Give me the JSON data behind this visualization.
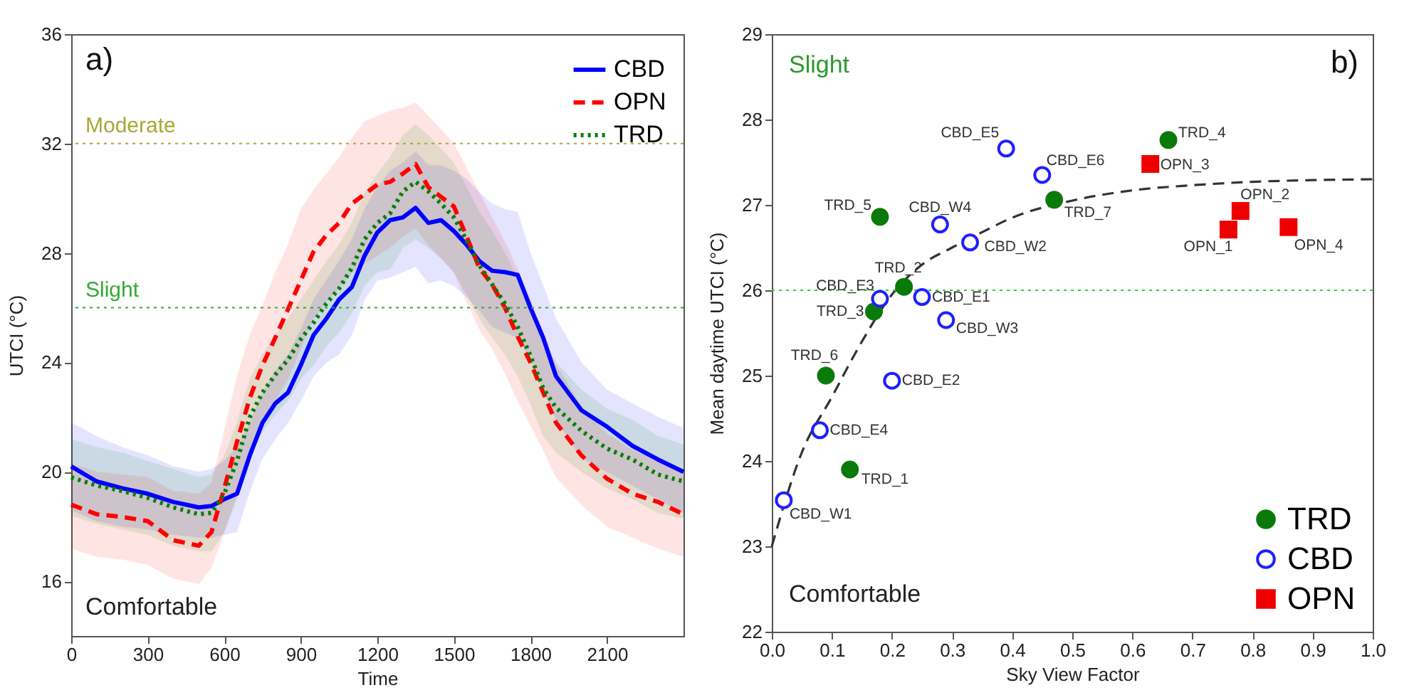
{
  "chart_data": [
    {
      "type": "line",
      "xlabel": "Time",
      "ylabel": "UTCI (°C)",
      "xlim": [
        0,
        2400
      ],
      "xticks": [
        0,
        300,
        600,
        900,
        1200,
        1500,
        1800,
        2100
      ],
      "ylim": [
        14,
        36
      ],
      "yticks": [
        16,
        20,
        24,
        28,
        32,
        36
      ],
      "grid": false,
      "legend": "top right",
      "marker": "none",
      "x": [
        0,
        100,
        200,
        300,
        400,
        500,
        550,
        600,
        650,
        700,
        750,
        800,
        850,
        900,
        950,
        1000,
        1050,
        1100,
        1150,
        1200,
        1250,
        1300,
        1350,
        1400,
        1450,
        1500,
        1550,
        1600,
        1650,
        1700,
        1750,
        1800,
        1850,
        1900,
        2000,
        2100,
        2200,
        2300,
        2400
      ],
      "series": [
        {
          "name": "CBD",
          "color": "#0000ff",
          "line_style": "solid",
          "values": [
            20.2,
            19.65,
            19.4,
            19.2,
            18.9,
            18.7,
            18.75,
            19.0,
            19.2,
            20.6,
            21.8,
            22.5,
            22.9,
            23.9,
            25.0,
            25.6,
            26.3,
            26.75,
            27.9,
            28.75,
            29.2,
            29.3,
            29.65,
            29.1,
            29.2,
            28.8,
            28.3,
            27.7,
            27.35,
            27.3,
            27.2,
            26.0,
            24.9,
            23.5,
            22.25,
            21.65,
            20.95,
            20.45,
            20.0
          ],
          "upper": [
            21.8,
            21.3,
            20.9,
            20.6,
            20.2,
            20.0,
            20.1,
            20.4,
            20.9,
            21.8,
            22.9,
            23.7,
            24.3,
            25.2,
            26.3,
            27.0,
            27.7,
            28.5,
            29.6,
            30.4,
            31.0,
            31.3,
            31.7,
            31.2,
            31.2,
            31.0,
            30.7,
            30.2,
            29.8,
            29.6,
            29.5,
            28.0,
            26.8,
            25.6,
            24.0,
            23.0,
            22.5,
            22.0,
            21.6
          ],
          "lower": [
            18.6,
            18.2,
            18.0,
            17.9,
            17.7,
            17.6,
            17.6,
            17.7,
            17.8,
            19.3,
            20.5,
            21.2,
            21.8,
            22.6,
            23.5,
            24.0,
            24.3,
            25.0,
            26.3,
            27.0,
            27.1,
            27.3,
            27.5,
            26.9,
            27.0,
            26.8,
            26.4,
            25.9,
            25.3,
            25.1,
            24.9,
            24.1,
            23.0,
            21.9,
            20.5,
            20.0,
            19.5,
            19.0,
            18.5
          ]
        },
        {
          "name": "OPN",
          "color": "#ff0000",
          "line_style": "dashed",
          "values": [
            18.8,
            18.45,
            18.35,
            18.2,
            17.5,
            17.3,
            17.8,
            19.4,
            21.1,
            22.7,
            23.9,
            24.9,
            25.95,
            27.0,
            28.05,
            28.65,
            29.1,
            29.8,
            30.15,
            30.5,
            30.6,
            30.9,
            31.25,
            30.4,
            30.05,
            29.7,
            28.6,
            27.45,
            26.85,
            26.0,
            24.95,
            24.0,
            22.9,
            21.8,
            20.6,
            19.75,
            19.2,
            18.9,
            18.45
          ],
          "upper": [
            20.3,
            20.0,
            19.9,
            19.8,
            19.3,
            19.2,
            19.6,
            21.5,
            23.5,
            25.0,
            26.1,
            27.3,
            28.3,
            29.6,
            30.3,
            30.9,
            31.5,
            32.2,
            32.8,
            33.0,
            33.2,
            33.3,
            33.5,
            33.0,
            32.5,
            32.0,
            31.1,
            30.2,
            29.3,
            28.4,
            27.4,
            26.3,
            25.1,
            23.9,
            22.4,
            21.4,
            20.8,
            20.4,
            19.9
          ],
          "lower": [
            17.2,
            16.9,
            16.8,
            16.6,
            16.1,
            15.9,
            16.5,
            17.8,
            19.2,
            20.6,
            21.7,
            22.6,
            23.4,
            24.5,
            25.6,
            26.2,
            26.7,
            27.3,
            27.6,
            27.9,
            28.2,
            28.6,
            28.9,
            28.3,
            27.8,
            27.3,
            26.2,
            25.2,
            24.5,
            23.6,
            22.6,
            21.7,
            20.8,
            19.8,
            18.8,
            18.0,
            17.6,
            17.2,
            16.9
          ]
        },
        {
          "name": "TRD",
          "color": "#008000",
          "line_style": "dotted",
          "values": [
            19.8,
            19.5,
            19.3,
            19.05,
            18.7,
            18.45,
            18.5,
            19.2,
            20.4,
            22.0,
            22.9,
            23.55,
            24.1,
            24.85,
            25.45,
            26.15,
            26.7,
            27.45,
            28.5,
            29.1,
            29.45,
            30.25,
            30.6,
            30.25,
            29.8,
            29.3,
            28.45,
            27.55,
            26.85,
            26.15,
            25.3,
            24.25,
            23.05,
            22.35,
            21.5,
            20.85,
            20.45,
            19.9,
            19.65
          ],
          "upper": [
            21.2,
            20.9,
            20.7,
            20.4,
            20.1,
            19.8,
            19.9,
            20.6,
            21.8,
            23.4,
            24.3,
            25.0,
            25.6,
            26.3,
            27.0,
            27.7,
            28.3,
            29.1,
            30.2,
            30.9,
            31.5,
            32.3,
            32.7,
            32.3,
            31.8,
            31.3,
            30.4,
            29.5,
            28.8,
            28.0,
            27.1,
            26.0,
            24.8,
            24.0,
            23.0,
            22.3,
            21.9,
            21.3,
            21.0
          ],
          "lower": [
            18.4,
            18.1,
            17.9,
            17.7,
            17.3,
            17.1,
            17.1,
            17.8,
            19.0,
            20.6,
            21.5,
            22.1,
            22.6,
            23.4,
            23.9,
            24.6,
            25.1,
            25.8,
            26.8,
            27.3,
            27.4,
            28.2,
            28.5,
            28.2,
            27.8,
            27.3,
            26.5,
            25.6,
            24.9,
            24.3,
            23.5,
            22.5,
            21.3,
            20.7,
            20.0,
            19.4,
            19.0,
            18.5,
            18.3
          ]
        }
      ],
      "ref_lines": [
        {
          "axis": "y",
          "value": 32,
          "label": "Moderate",
          "color": "#a8a838",
          "line_style": "dotted"
        },
        {
          "axis": "y",
          "value": 26,
          "label": "Slight",
          "color": "#33aa33",
          "line_style": "dotted"
        }
      ],
      "annotations": [
        "a)",
        "Comfortable"
      ]
    },
    {
      "type": "scatter",
      "xlabel": "Sky View Factor",
      "ylabel": "Mean daytime UTCI (°C)",
      "xlim": [
        0,
        1
      ],
      "xticks": [
        {
          "value": 0,
          "label": "0.0"
        },
        0.1,
        0.2,
        0.3,
        0.4,
        0.5,
        0.6,
        0.7,
        0.8,
        0.9,
        {
          "value": 1,
          "label": "1.0"
        }
      ],
      "ylim": [
        22,
        29
      ],
      "yticks": [
        22,
        23,
        24,
        25,
        26,
        27,
        28,
        29
      ],
      "grid": false,
      "legend": "bottom right",
      "series": [
        {
          "name": "TRD",
          "color": "#0a7a0a",
          "marker": "circle",
          "x": [
            0.13,
            0.22,
            0.17,
            0.66,
            0.18,
            0.09,
            0.47
          ],
          "values": [
            23.9,
            26.04,
            25.75,
            27.76,
            26.86,
            25.0,
            27.06
          ]
        },
        {
          "name": "CBD",
          "color": "#1f1fff",
          "marker": "circle",
          "x": [
            0.25,
            0.2,
            0.18,
            0.08,
            0.39,
            0.45,
            0.02,
            0.33,
            0.29,
            0.28
          ],
          "values": [
            25.92,
            24.94,
            25.9,
            24.36,
            27.66,
            27.35,
            23.54,
            26.56,
            25.65,
            26.77
          ]
        },
        {
          "name": "OPN",
          "color": "#ee0000",
          "marker": "square",
          "x": [
            0.76,
            0.78,
            0.63,
            0.86
          ],
          "values": [
            26.71,
            26.93,
            27.48,
            26.74
          ]
        },
        {
          "type": "line",
          "color": "#333333",
          "line_style": "dashed",
          "x": [
            0,
            0.05,
            0.1,
            0.15,
            0.2,
            0.25,
            0.3,
            0.35,
            0.4,
            0.5,
            0.6,
            0.7,
            0.8,
            0.9,
            1.0
          ],
          "values": [
            23.0,
            24.1,
            24.75,
            25.4,
            25.95,
            26.3,
            26.5,
            26.68,
            26.85,
            27.05,
            27.17,
            27.23,
            27.27,
            27.29,
            27.3
          ]
        }
      ],
      "ref_lines": [
        {
          "axis": "y",
          "value": 26,
          "color": "#33cc33",
          "line_style": "dotted"
        }
      ],
      "annotations": [
        "b)",
        "Slight",
        "Comfortable",
        {
          "text": "TRD_1",
          "x": 0.13,
          "y": 23.9
        },
        {
          "text": "TRD_2",
          "x": 0.22,
          "y": 26.04
        },
        {
          "text": "TRD_3",
          "x": 0.17,
          "y": 25.75
        },
        {
          "text": "TRD_4",
          "x": 0.66,
          "y": 27.76
        },
        {
          "text": "TRD_5",
          "x": 0.18,
          "y": 26.86
        },
        {
          "text": "TRD_6",
          "x": 0.09,
          "y": 25.0
        },
        {
          "text": "TRD_7",
          "x": 0.47,
          "y": 27.06
        },
        {
          "text": "CBD_E1",
          "x": 0.25,
          "y": 25.92
        },
        {
          "text": "CBD_E2",
          "x": 0.2,
          "y": 24.94
        },
        {
          "text": "CBD_E3",
          "x": 0.18,
          "y": 25.9
        },
        {
          "text": "CBD_E4",
          "x": 0.08,
          "y": 24.36
        },
        {
          "text": "CBD_E5",
          "x": 0.39,
          "y": 27.66
        },
        {
          "text": "CBD_E6",
          "x": 0.45,
          "y": 27.35
        },
        {
          "text": "CBD_W1",
          "x": 0.02,
          "y": 23.54
        },
        {
          "text": "CBD_W2",
          "x": 0.33,
          "y": 26.56
        },
        {
          "text": "CBD_W3",
          "x": 0.29,
          "y": 25.65
        },
        {
          "text": "CBD_W4",
          "x": 0.28,
          "y": 26.77
        },
        {
          "text": "OPN_1",
          "x": 0.76,
          "y": 26.71
        },
        {
          "text": "OPN_2",
          "x": 0.78,
          "y": 26.93
        },
        {
          "text": "OPN_3",
          "x": 0.63,
          "y": 27.48
        },
        {
          "text": "OPN_4",
          "x": 0.86,
          "y": 26.74
        }
      ]
    }
  ]
}
